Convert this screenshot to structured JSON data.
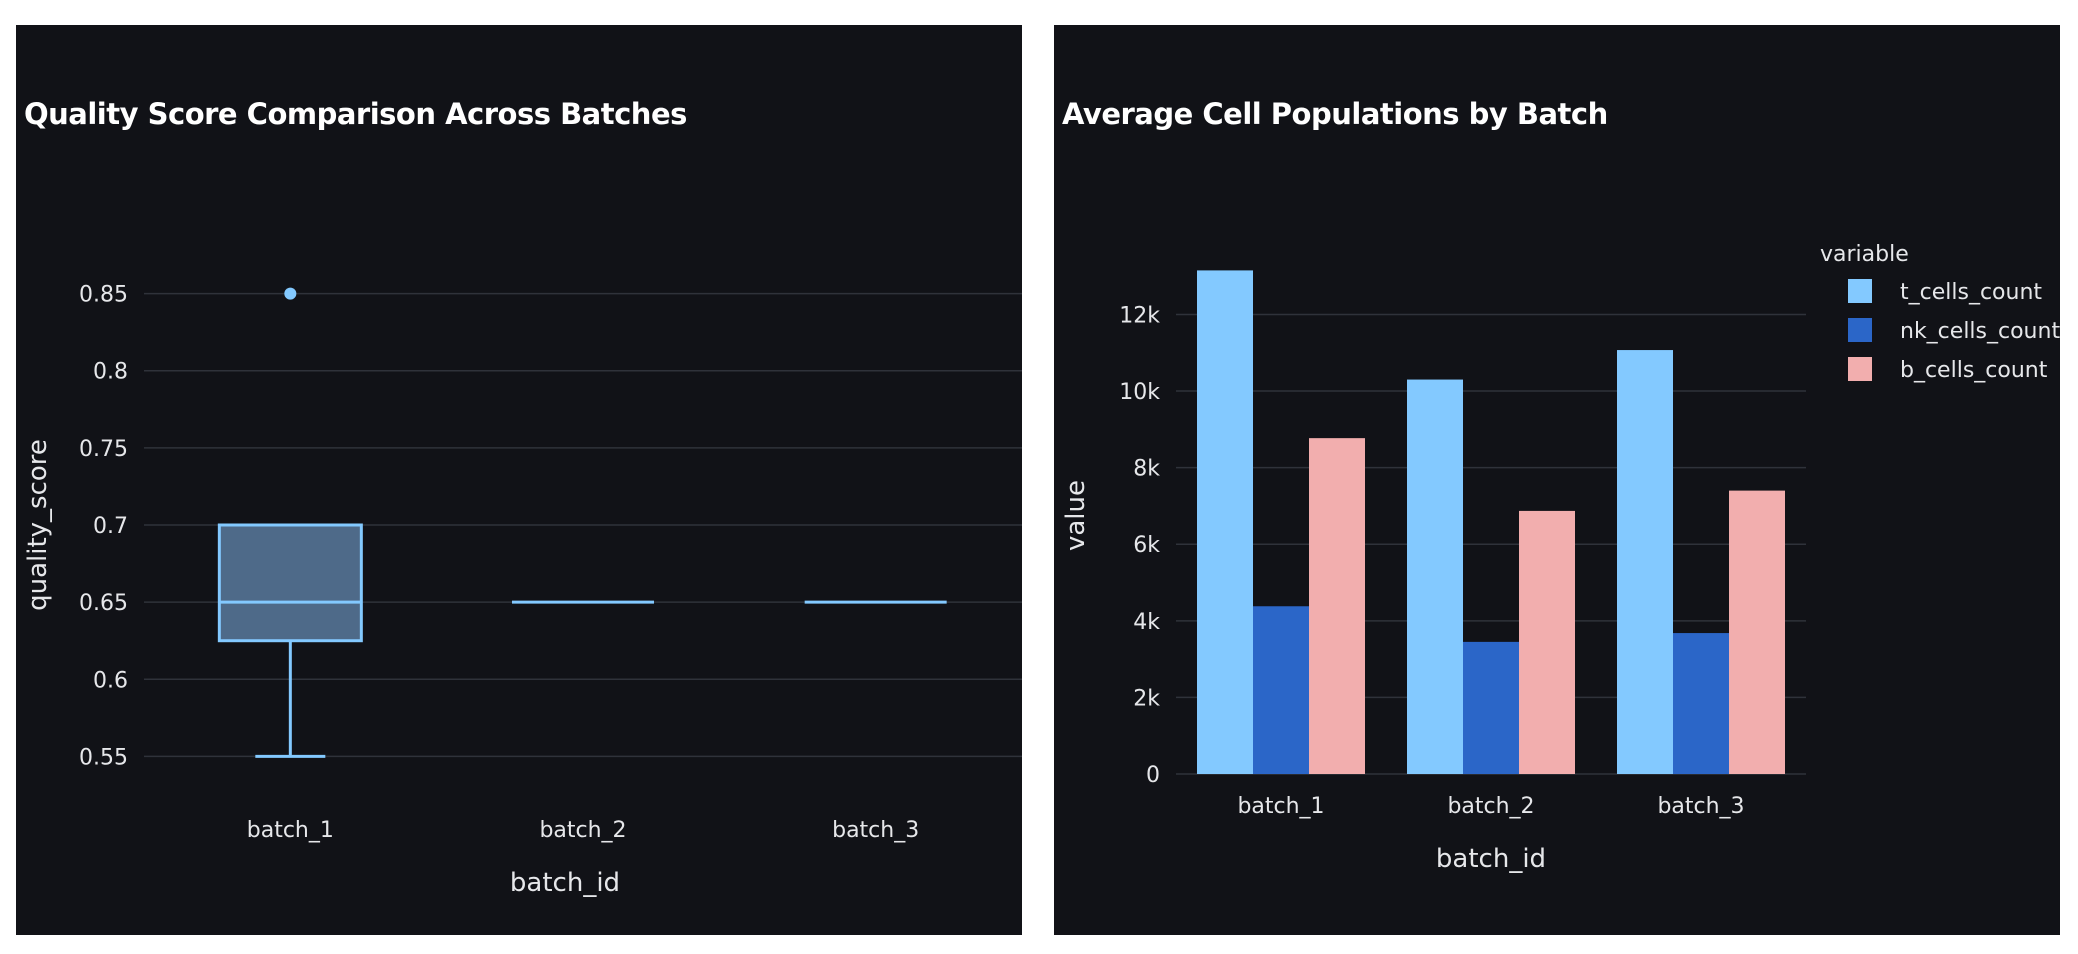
{
  "chart_data": [
    {
      "type": "box",
      "title": "Quality Score Comparison Across Batches",
      "xlabel": "batch_id",
      "ylabel": "quality_score",
      "ylim": [
        0.525,
        0.875
      ],
      "yticks": [
        {
          "value": 0.55,
          "label": "0.55"
        },
        {
          "value": 0.6,
          "label": "0.6"
        },
        {
          "value": 0.65,
          "label": "0.65"
        },
        {
          "value": 0.7,
          "label": "0.7"
        },
        {
          "value": 0.75,
          "label": "0.75"
        },
        {
          "value": 0.8,
          "label": "0.8"
        },
        {
          "value": 0.85,
          "label": "0.85"
        }
      ],
      "grid": true,
      "color": "#83c9ff",
      "fill": "#4e6a89",
      "boxes": [
        {
          "category": "batch_1",
          "min": 0.55,
          "q1": 0.625,
          "median": 0.65,
          "q3": 0.7,
          "max": 0.7,
          "outliers": [
            0.85
          ]
        },
        {
          "category": "batch_2",
          "min": 0.65,
          "q1": 0.65,
          "median": 0.65,
          "q3": 0.65,
          "max": 0.65,
          "outliers": []
        },
        {
          "category": "batch_3",
          "min": 0.65,
          "q1": 0.65,
          "median": 0.65,
          "q3": 0.65,
          "max": 0.65,
          "outliers": []
        }
      ]
    },
    {
      "type": "bar",
      "title": "Average Cell Populations by Batch",
      "xlabel": "batch_id",
      "ylabel": "value",
      "ylim": [
        0,
        13500
      ],
      "yticks": [
        {
          "value": 0,
          "label": "0"
        },
        {
          "value": 2000,
          "label": "2k"
        },
        {
          "value": 4000,
          "label": "4k"
        },
        {
          "value": 6000,
          "label": "6k"
        },
        {
          "value": 8000,
          "label": "8k"
        },
        {
          "value": 10000,
          "label": "10k"
        },
        {
          "value": 12000,
          "label": "12k"
        }
      ],
      "grid": true,
      "categories": [
        "batch_1",
        "batch_2",
        "batch_3"
      ],
      "legend_title": "variable",
      "legend_position": "top-right",
      "series": [
        {
          "name": "t_cells_count",
          "color": "#83c9ff",
          "values": [
            13150,
            10300,
            11070
          ]
        },
        {
          "name": "nk_cells_count",
          "color": "#2b66c8",
          "values": [
            4380,
            3450,
            3680
          ]
        },
        {
          "name": "b_cells_count",
          "color": "#f2aeae",
          "values": [
            8770,
            6870,
            7400
          ]
        }
      ]
    }
  ]
}
